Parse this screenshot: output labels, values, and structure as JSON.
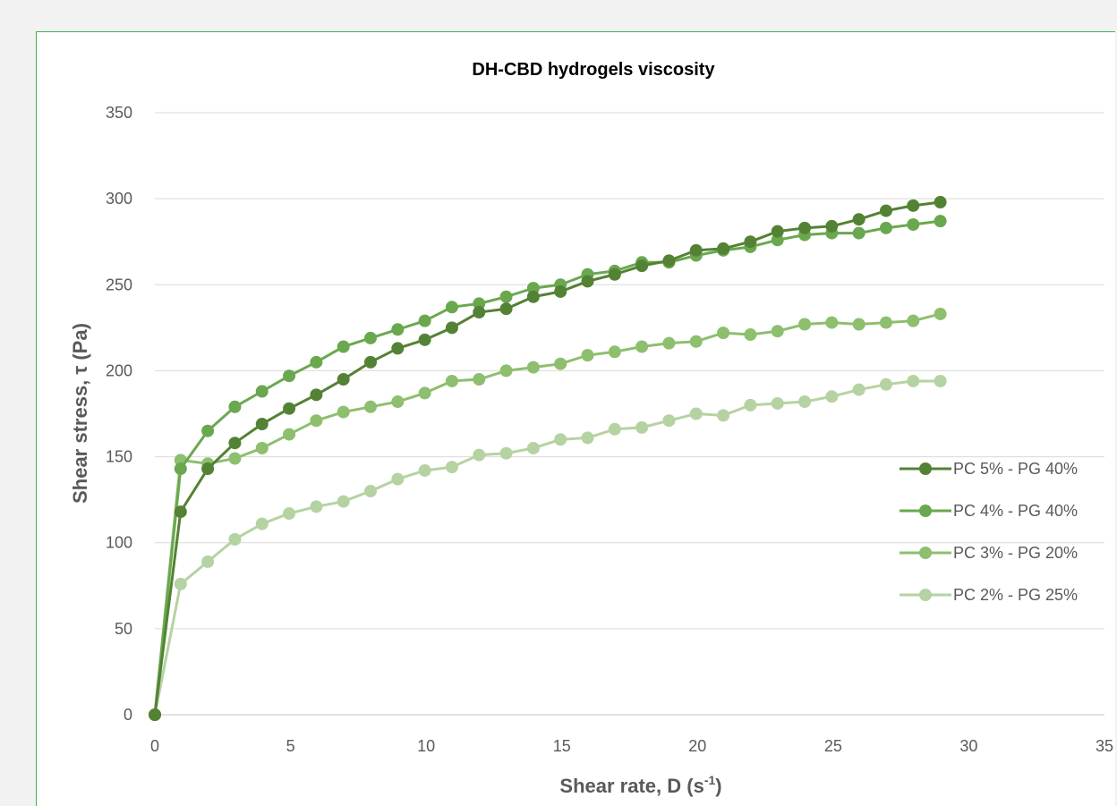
{
  "chart_data": {
    "type": "line",
    "title": "DH-CBD hydrogels viscosity",
    "xlabel": "Shear rate, D (s",
    "xlabel_sup": "-1",
    "xlabel_end": ")",
    "ylabel": "Shear stress, τ (Pa)",
    "xlim": [
      0,
      35
    ],
    "ylim": [
      0,
      350
    ],
    "xticks": [
      "0",
      "5",
      "10",
      "15",
      "20",
      "25",
      "30",
      "35"
    ],
    "yticks": [
      "0",
      "50",
      "100",
      "150",
      "200",
      "250",
      "300",
      "350"
    ],
    "grid": "horizontal",
    "legend": "right",
    "x": [
      0,
      0.95,
      1.95,
      2.95,
      3.95,
      4.95,
      5.95,
      6.95,
      7.95,
      8.95,
      9.95,
      10.95,
      11.95,
      12.95,
      13.95,
      14.95,
      15.95,
      16.95,
      17.95,
      18.95,
      19.95,
      20.95,
      21.95,
      22.95,
      23.95,
      24.95,
      25.95,
      26.95,
      27.95,
      28.95
    ],
    "series": [
      {
        "name": "PC 5% - PG 40%",
        "color": "#548235",
        "values": [
          0,
          118,
          143,
          158,
          169,
          178,
          186,
          195,
          205,
          213,
          218,
          225,
          234,
          236,
          243,
          246,
          252,
          256,
          261,
          264,
          270,
          271,
          275,
          281,
          283,
          284,
          288,
          293,
          296,
          298
        ]
      },
      {
        "name": "PC 4% - PG 40%",
        "color": "#6aa84f",
        "values": [
          0,
          143,
          165,
          179,
          188,
          197,
          205,
          214,
          219,
          224,
          229,
          237,
          239,
          243,
          248,
          250,
          256,
          258,
          263,
          263,
          267,
          270,
          272,
          276,
          279,
          280,
          280,
          283,
          285,
          287
        ]
      },
      {
        "name": "PC 3% - PG 20%",
        "color": "#8dbf6e",
        "values": [
          0,
          148,
          146,
          149,
          155,
          163,
          171,
          176,
          179,
          182,
          187,
          194,
          195,
          200,
          202,
          204,
          209,
          211,
          214,
          216,
          217,
          222,
          221,
          223,
          227,
          228,
          227,
          228,
          229,
          233
        ]
      },
      {
        "name": "PC 2% - PG 25%",
        "color": "#b5d3a2",
        "values": [
          0,
          76,
          89,
          102,
          111,
          117,
          121,
          124,
          130,
          137,
          142,
          144,
          151,
          152,
          155,
          160,
          161,
          166,
          167,
          171,
          175,
          174,
          180,
          181,
          182,
          185,
          189,
          192,
          194,
          194
        ]
      }
    ]
  }
}
